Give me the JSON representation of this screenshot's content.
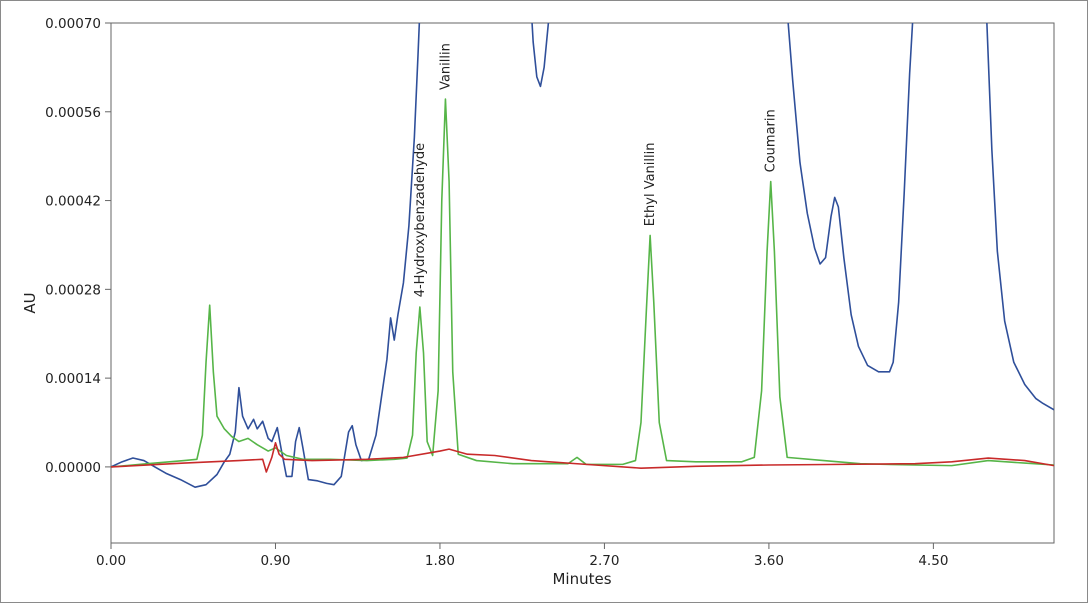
{
  "chart_data": {
    "type": "line",
    "title": "",
    "xlabel": "Minutes",
    "ylabel": "AU",
    "xlim": [
      0,
      5.16
    ],
    "ylim": [
      -0.00012,
      0.0007
    ],
    "x_ticks": [
      {
        "value": 0.0,
        "label": "0.00"
      },
      {
        "value": 0.9,
        "label": "0.90"
      },
      {
        "value": 1.8,
        "label": "1.80"
      },
      {
        "value": 2.7,
        "label": "2.70"
      },
      {
        "value": 3.6,
        "label": "3.60"
      },
      {
        "value": 4.5,
        "label": "4.50"
      }
    ],
    "y_ticks": [
      {
        "value": 0.0,
        "label": "0.00000"
      },
      {
        "value": 0.00014,
        "label": "0.00014"
      },
      {
        "value": 0.00028,
        "label": "0.00028"
      },
      {
        "value": 0.00042,
        "label": "0.00042"
      },
      {
        "value": 0.00056,
        "label": "0.00056"
      },
      {
        "value": 0.0007,
        "label": "0.00070"
      }
    ],
    "grid": false,
    "legend": "none",
    "series": [
      {
        "color": "#2f4f9a",
        "points": [
          [
            0.0,
            0.0
          ],
          [
            0.06,
            8e-06
          ],
          [
            0.12,
            1.4e-05
          ],
          [
            0.18,
            1e-05
          ],
          [
            0.24,
            0.0
          ],
          [
            0.3,
            -1e-05
          ],
          [
            0.38,
            -2e-05
          ],
          [
            0.46,
            -3.2e-05
          ],
          [
            0.52,
            -2.8e-05
          ],
          [
            0.58,
            -1.2e-05
          ],
          [
            0.62,
            8e-06
          ],
          [
            0.65,
            2e-05
          ],
          [
            0.68,
            5.5e-05
          ],
          [
            0.7,
            0.000125
          ],
          [
            0.72,
            8e-05
          ],
          [
            0.75,
            6e-05
          ],
          [
            0.78,
            7.5e-05
          ],
          [
            0.8,
            6e-05
          ],
          [
            0.83,
            7.2e-05
          ],
          [
            0.86,
            4.5e-05
          ],
          [
            0.88,
            4e-05
          ],
          [
            0.91,
            6.2e-05
          ],
          [
            0.93,
            3e-05
          ],
          [
            0.96,
            -1.5e-05
          ],
          [
            0.99,
            -1.5e-05
          ],
          [
            1.01,
            4e-05
          ],
          [
            1.03,
            6.2e-05
          ],
          [
            1.05,
            3e-05
          ],
          [
            1.08,
            -2e-05
          ],
          [
            1.13,
            -2.2e-05
          ],
          [
            1.18,
            -2.6e-05
          ],
          [
            1.22,
            -2.8e-05
          ],
          [
            1.26,
            -1.5e-05
          ],
          [
            1.3,
            5.5e-05
          ],
          [
            1.32,
            6.5e-05
          ],
          [
            1.34,
            3.5e-05
          ],
          [
            1.37,
            1e-05
          ],
          [
            1.41,
            1.2e-05
          ],
          [
            1.45,
            5e-05
          ],
          [
            1.48,
            0.00011
          ],
          [
            1.51,
            0.00017
          ],
          [
            1.53,
            0.000235
          ],
          [
            1.55,
            0.0002
          ],
          [
            1.57,
            0.00024
          ],
          [
            1.6,
            0.00029
          ],
          [
            1.63,
            0.00038
          ],
          [
            1.66,
            0.00052
          ],
          [
            1.68,
            0.00065
          ],
          [
            1.69,
            0.00072
          ],
          null,
          [
            2.3,
            0.00072
          ],
          [
            2.31,
            0.00067
          ],
          [
            2.33,
            0.000615
          ],
          [
            2.35,
            0.0006
          ],
          [
            2.37,
            0.00063
          ],
          [
            2.39,
            0.00069
          ],
          [
            2.4,
            0.00072
          ],
          null,
          [
            3.7,
            0.00072
          ],
          [
            3.73,
            0.00061
          ],
          [
            3.77,
            0.00048
          ],
          [
            3.81,
            0.0004
          ],
          [
            3.85,
            0.000345
          ],
          [
            3.88,
            0.00032
          ],
          [
            3.91,
            0.00033
          ],
          [
            3.94,
            0.000395
          ],
          [
            3.96,
            0.000425
          ],
          [
            3.98,
            0.00041
          ],
          [
            4.01,
            0.00033
          ],
          [
            4.05,
            0.00024
          ],
          [
            4.09,
            0.00019
          ],
          [
            4.14,
            0.00016
          ],
          [
            4.2,
            0.00015
          ],
          [
            4.26,
            0.00015
          ],
          [
            4.28,
            0.000165
          ],
          [
            4.31,
            0.00026
          ],
          [
            4.34,
            0.00043
          ],
          [
            4.37,
            0.00062
          ],
          [
            4.39,
            0.00072
          ],
          null,
          [
            4.79,
            0.00072
          ],
          [
            4.82,
            0.0005
          ],
          [
            4.85,
            0.00034
          ],
          [
            4.89,
            0.00023
          ],
          [
            4.94,
            0.000165
          ],
          [
            5.0,
            0.00013
          ],
          [
            5.06,
            0.000108
          ],
          [
            5.1,
            0.0001
          ],
          [
            5.16,
            9e-05
          ]
        ]
      },
      {
        "color": "#56b548",
        "points": [
          [
            0.0,
            0.0
          ],
          [
            0.2,
            5e-06
          ],
          [
            0.4,
            1e-05
          ],
          [
            0.47,
            1.2e-05
          ],
          [
            0.5,
            5e-05
          ],
          [
            0.52,
            0.000165
          ],
          [
            0.54,
            0.000255
          ],
          [
            0.56,
            0.00015
          ],
          [
            0.58,
            8e-05
          ],
          [
            0.62,
            6e-05
          ],
          [
            0.66,
            4.8e-05
          ],
          [
            0.7,
            4e-05
          ],
          [
            0.75,
            4.5e-05
          ],
          [
            0.8,
            3.5e-05
          ],
          [
            0.86,
            2.5e-05
          ],
          [
            0.9,
            3e-05
          ],
          [
            0.96,
            1.8e-05
          ],
          [
            1.05,
            1.2e-05
          ],
          [
            1.2,
            1.2e-05
          ],
          [
            1.4,
            1e-05
          ],
          [
            1.55,
            1.2e-05
          ],
          [
            1.62,
            1.4e-05
          ],
          [
            1.65,
            5e-05
          ],
          [
            1.67,
            0.00018
          ],
          [
            1.69,
            0.000252
          ],
          [
            1.71,
            0.00018
          ],
          [
            1.73,
            4e-05
          ],
          [
            1.76,
            1.8e-05
          ],
          [
            1.79,
            0.00012
          ],
          [
            1.81,
            0.00042
          ],
          [
            1.83,
            0.00058
          ],
          [
            1.85,
            0.00045
          ],
          [
            1.87,
            0.00015
          ],
          [
            1.9,
            2e-05
          ],
          [
            2.0,
            1e-05
          ],
          [
            2.2,
            5e-06
          ],
          [
            2.5,
            5e-06
          ],
          [
            2.55,
            1.5e-05
          ],
          [
            2.6,
            4e-06
          ],
          [
            2.8,
            4e-06
          ],
          [
            2.87,
            1e-05
          ],
          [
            2.9,
            7e-05
          ],
          [
            2.93,
            0.00025
          ],
          [
            2.95,
            0.000365
          ],
          [
            2.97,
            0.00026
          ],
          [
            3.0,
            7e-05
          ],
          [
            3.04,
            1e-05
          ],
          [
            3.2,
            8e-06
          ],
          [
            3.45,
            8e-06
          ],
          [
            3.52,
            1.5e-05
          ],
          [
            3.56,
            0.00012
          ],
          [
            3.59,
            0.00034
          ],
          [
            3.61,
            0.00045
          ],
          [
            3.63,
            0.00034
          ],
          [
            3.66,
            0.00011
          ],
          [
            3.7,
            1.5e-05
          ],
          [
            3.9,
            1e-05
          ],
          [
            4.1,
            5e-06
          ],
          [
            4.4,
            3e-06
          ],
          [
            4.6,
            2e-06
          ],
          [
            4.8,
            1e-05
          ],
          [
            5.0,
            6e-06
          ],
          [
            5.16,
            3e-06
          ]
        ]
      },
      {
        "color": "#c82a2a",
        "points": [
          [
            0.0,
            0.0
          ],
          [
            0.4,
            6e-06
          ],
          [
            0.7,
            1e-05
          ],
          [
            0.83,
            1.2e-05
          ],
          [
            0.85,
            -8e-06
          ],
          [
            0.88,
            1.5e-05
          ],
          [
            0.9,
            3.8e-05
          ],
          [
            0.92,
            2e-05
          ],
          [
            0.95,
            1.2e-05
          ],
          [
            1.1,
            1e-05
          ],
          [
            1.4,
            1.2e-05
          ],
          [
            1.6,
            1.5e-05
          ],
          [
            1.8,
            2.5e-05
          ],
          [
            1.85,
            2.8e-05
          ],
          [
            1.95,
            2e-05
          ],
          [
            2.1,
            1.8e-05
          ],
          [
            2.3,
            1e-05
          ],
          [
            2.6,
            4e-06
          ],
          [
            2.9,
            -2e-06
          ],
          [
            3.2,
            1e-06
          ],
          [
            3.6,
            3e-06
          ],
          [
            4.0,
            4e-06
          ],
          [
            4.4,
            5e-06
          ],
          [
            4.6,
            8e-06
          ],
          [
            4.8,
            1.4e-05
          ],
          [
            5.0,
            1e-05
          ],
          [
            5.16,
            2e-06
          ]
        ]
      }
    ],
    "annotations": [
      {
        "text": "4-Hydroxybenzadehyde",
        "x": 1.69,
        "y": 0.000258
      },
      {
        "text": "Vanillin",
        "x": 1.83,
        "y": 0.000585
      },
      {
        "text": "Ethyl Vanillin",
        "x": 2.95,
        "y": 0.00037
      },
      {
        "text": "Coumarin",
        "x": 3.61,
        "y": 0.000455
      }
    ]
  }
}
